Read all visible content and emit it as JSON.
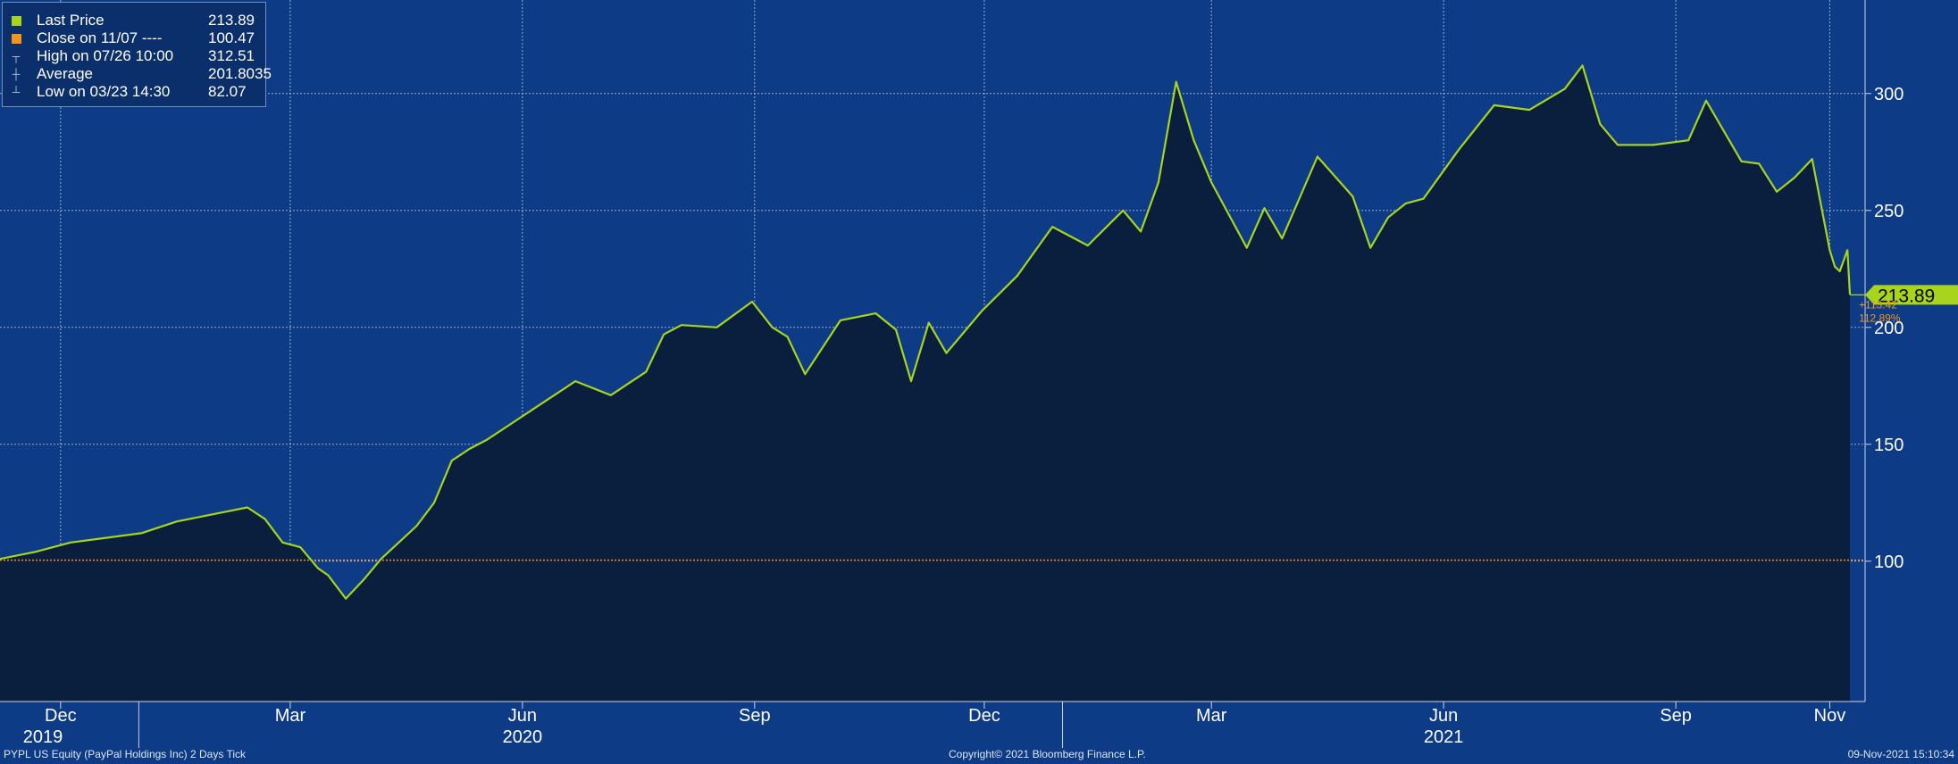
{
  "legend": [
    {
      "marker": "square-green",
      "label": "Last Price",
      "value": "213.89"
    },
    {
      "marker": "square-orange",
      "label": "Close on 11/07 ----",
      "value": "100.47"
    },
    {
      "marker": "high-marker",
      "label": "High on 07/26 10:00",
      "value": "312.51"
    },
    {
      "marker": "average-marker",
      "label": "Average",
      "value": "201.8035"
    },
    {
      "marker": "low-marker",
      "label": "Low on 03/23 14:30",
      "value": "82.07"
    }
  ],
  "last_price_tag": "213.89",
  "change_abs": "+113.42",
  "change_pct": "112.89%",
  "footer": {
    "left": "PYPL US Equity (PayPal Holdings Inc) 2 Days  Tick",
    "center": "Copyright© 2021 Bloomberg Finance L.P.",
    "right": "09-Nov-2021 15:10:34"
  },
  "colors": {
    "background": "#0d3b85",
    "line": "#a8d41e",
    "area_fill": "#0a1f3d",
    "reference_line": "#f2941e",
    "change_text": "#f2941e"
  },
  "chart_data": {
    "type": "area",
    "y_axis_position": "right",
    "ylim": [
      40,
      340
    ],
    "yticks": [
      100,
      150,
      200,
      250,
      300
    ],
    "grid": true,
    "xlim": [
      "2019-11-07",
      "2021-11-15"
    ],
    "month_ticks": [
      {
        "date": "2019-12-01",
        "label": "Dec"
      },
      {
        "date": "2020-03-01",
        "label": "Mar"
      },
      {
        "date": "2020-06-01",
        "label": "Jun"
      },
      {
        "date": "2020-09-01",
        "label": "Sep"
      },
      {
        "date": "2020-12-01",
        "label": "Dec"
      },
      {
        "date": "2021-03-01",
        "label": "Mar"
      },
      {
        "date": "2021-06-01",
        "label": "Jun"
      },
      {
        "date": "2021-09-01",
        "label": "Sep"
      },
      {
        "date": "2021-11-01",
        "label": "Nov"
      }
    ],
    "year_ticks": [
      {
        "date": "2020-01-01",
        "label": "2020"
      },
      {
        "date": "2021-01-01",
        "label": "2021"
      }
    ],
    "year_labels": [
      {
        "date": "2019-11-24",
        "label": "2019"
      },
      {
        "date": "2020-06-01",
        "label": "2020"
      },
      {
        "date": "2021-06-01",
        "label": "2021"
      }
    ],
    "reference_value": 100.47,
    "last_value": 213.89,
    "series": [
      {
        "name": "Last Price",
        "x": [
          "2019-11-07",
          "2019-11-21",
          "2019-12-05",
          "2019-12-19",
          "2020-01-02",
          "2020-01-16",
          "2020-01-30",
          "2020-02-13",
          "2020-02-20",
          "2020-02-27",
          "2020-03-05",
          "2020-03-12",
          "2020-03-16",
          "2020-03-23",
          "2020-03-30",
          "2020-04-06",
          "2020-04-13",
          "2020-04-20",
          "2020-04-27",
          "2020-05-04",
          "2020-05-11",
          "2020-05-18",
          "2020-05-25",
          "2020-06-08",
          "2020-06-22",
          "2020-07-06",
          "2020-07-20",
          "2020-07-27",
          "2020-08-03",
          "2020-08-17",
          "2020-08-31",
          "2020-09-08",
          "2020-09-14",
          "2020-09-21",
          "2020-10-05",
          "2020-10-19",
          "2020-10-27",
          "2020-11-02",
          "2020-11-09",
          "2020-11-16",
          "2020-11-30",
          "2020-12-14",
          "2020-12-28",
          "2021-01-11",
          "2021-01-25",
          "2021-02-01",
          "2021-02-08",
          "2021-02-15",
          "2021-02-22",
          "2021-03-01",
          "2021-03-08",
          "2021-03-15",
          "2021-03-22",
          "2021-03-29",
          "2021-04-12",
          "2021-04-26",
          "2021-05-03",
          "2021-05-10",
          "2021-05-17",
          "2021-05-24",
          "2021-06-07",
          "2021-06-21",
          "2021-07-05",
          "2021-07-19",
          "2021-07-26",
          "2021-08-02",
          "2021-08-09",
          "2021-08-23",
          "2021-09-06",
          "2021-09-13",
          "2021-09-27",
          "2021-10-04",
          "2021-10-11",
          "2021-10-18",
          "2021-10-25",
          "2021-11-01",
          "2021-11-03",
          "2021-11-05",
          "2021-11-08",
          "2021-11-09"
        ],
        "y": [
          101,
          104,
          108,
          110,
          112,
          117,
          120,
          123,
          118,
          108,
          106,
          97,
          94,
          84,
          92,
          101,
          108,
          115,
          125,
          143,
          148,
          152,
          157,
          167,
          177,
          171,
          181,
          197,
          201,
          200,
          211,
          200,
          196,
          180,
          203,
          206,
          199,
          177,
          202,
          189,
          207,
          222,
          243,
          235,
          250,
          241,
          262,
          305,
          280,
          262,
          248,
          234,
          251,
          238,
          273,
          256,
          234,
          247,
          253,
          255,
          276,
          295,
          293,
          302,
          312,
          287,
          278,
          278,
          280,
          297,
          271,
          270,
          258,
          264,
          272,
          233,
          226,
          224,
          233,
          214
        ]
      }
    ]
  }
}
